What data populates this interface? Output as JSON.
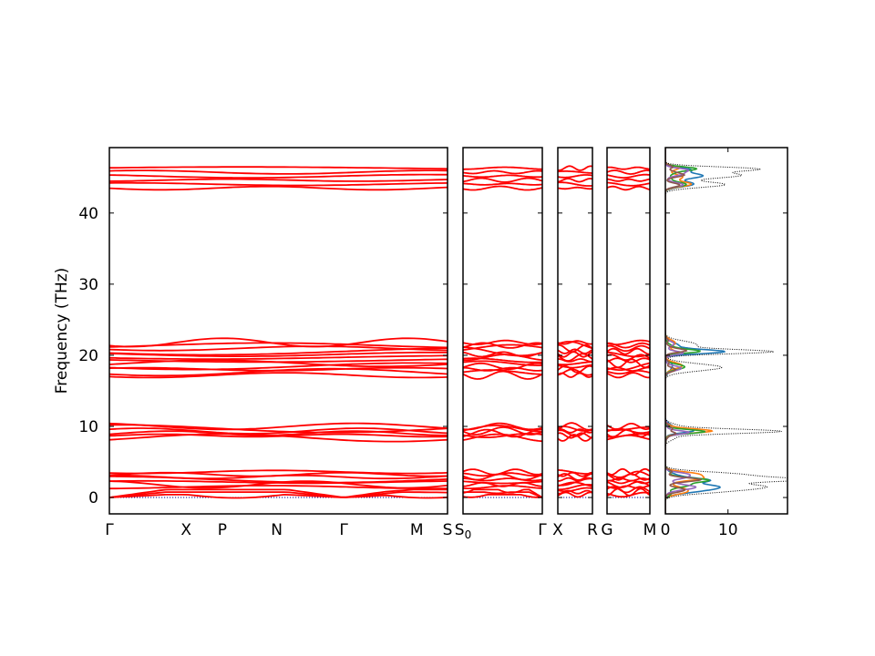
{
  "chart_data": {
    "type": "line",
    "ylabel": "Frequency (THz)",
    "ylim": [
      -2.3,
      49.2
    ],
    "yticks": [
      0,
      10,
      20,
      30,
      40
    ],
    "grid": false,
    "band_color": "#ff0000",
    "zero_line_color": "#00008b",
    "panels": [
      {
        "id": "p1",
        "points": [
          "Γ",
          "X",
          "P",
          "N",
          "Γ",
          "M",
          "S"
        ],
        "point_pos": [
          0,
          0.227,
          0.334,
          0.495,
          0.693,
          0.909,
          1
        ]
      },
      {
        "id": "p2",
        "points": [
          "S0",
          "Γ"
        ],
        "point_pos": [
          0,
          1
        ]
      },
      {
        "id": "p3",
        "points": [
          "X",
          "R"
        ],
        "point_pos": [
          0,
          1
        ]
      },
      {
        "id": "p4",
        "points": [
          "G",
          "M"
        ],
        "point_pos": [
          0,
          1
        ]
      }
    ],
    "band_groups": [
      {
        "name": "acoustic",
        "center": 2.0,
        "spread": 1.6,
        "count": 10,
        "amplitude": 0.8,
        "acoustic_dip": true
      },
      {
        "name": "low-optic",
        "center": 9.2,
        "spread": 0.8,
        "count": 6,
        "amplitude": 0.9
      },
      {
        "name": "mid-optic",
        "center": 19.5,
        "spread": 2.3,
        "count": 12,
        "amplitude": 1.0
      },
      {
        "name": "high-optic",
        "center": 44.9,
        "spread": 1.4,
        "count": 6,
        "amplitude": 0.5
      }
    ],
    "dos": {
      "xlim": [
        0,
        19.5
      ],
      "xticks": [
        0,
        10
      ],
      "total_color": "#000000",
      "peaks": [
        {
          "f": 46.2,
          "h": 14.0,
          "w": 0.3
        },
        {
          "f": 45.3,
          "h": 12.0,
          "w": 0.4
        },
        {
          "f": 44.0,
          "h": 9.5,
          "w": 0.4
        },
        {
          "f": 21.5,
          "h": 5.0,
          "w": 0.5
        },
        {
          "f": 20.5,
          "h": 16.5,
          "w": 0.3
        },
        {
          "f": 18.3,
          "h": 9.0,
          "w": 0.5
        },
        {
          "f": 9.3,
          "h": 18.0,
          "w": 0.3
        },
        {
          "f": 10.0,
          "h": 2.0,
          "w": 0.4
        },
        {
          "f": 8.4,
          "h": 1.5,
          "w": 0.4
        },
        {
          "f": 3.2,
          "h": 12.0,
          "w": 0.4
        },
        {
          "f": 2.5,
          "h": 19.0,
          "w": 0.3
        },
        {
          "f": 1.6,
          "h": 14.0,
          "w": 0.4
        },
        {
          "f": 0.9,
          "h": 8.0,
          "w": 0.4
        }
      ],
      "partials": [
        {
          "color": "#1f77b4",
          "scale": 0.55
        },
        {
          "color": "#ff7f0e",
          "scale": 0.45
        },
        {
          "color": "#2ca02c",
          "scale": 0.35
        },
        {
          "color": "#9467bd",
          "scale": 0.3
        },
        {
          "color": "#8c564b",
          "scale": 0.25
        }
      ]
    }
  }
}
